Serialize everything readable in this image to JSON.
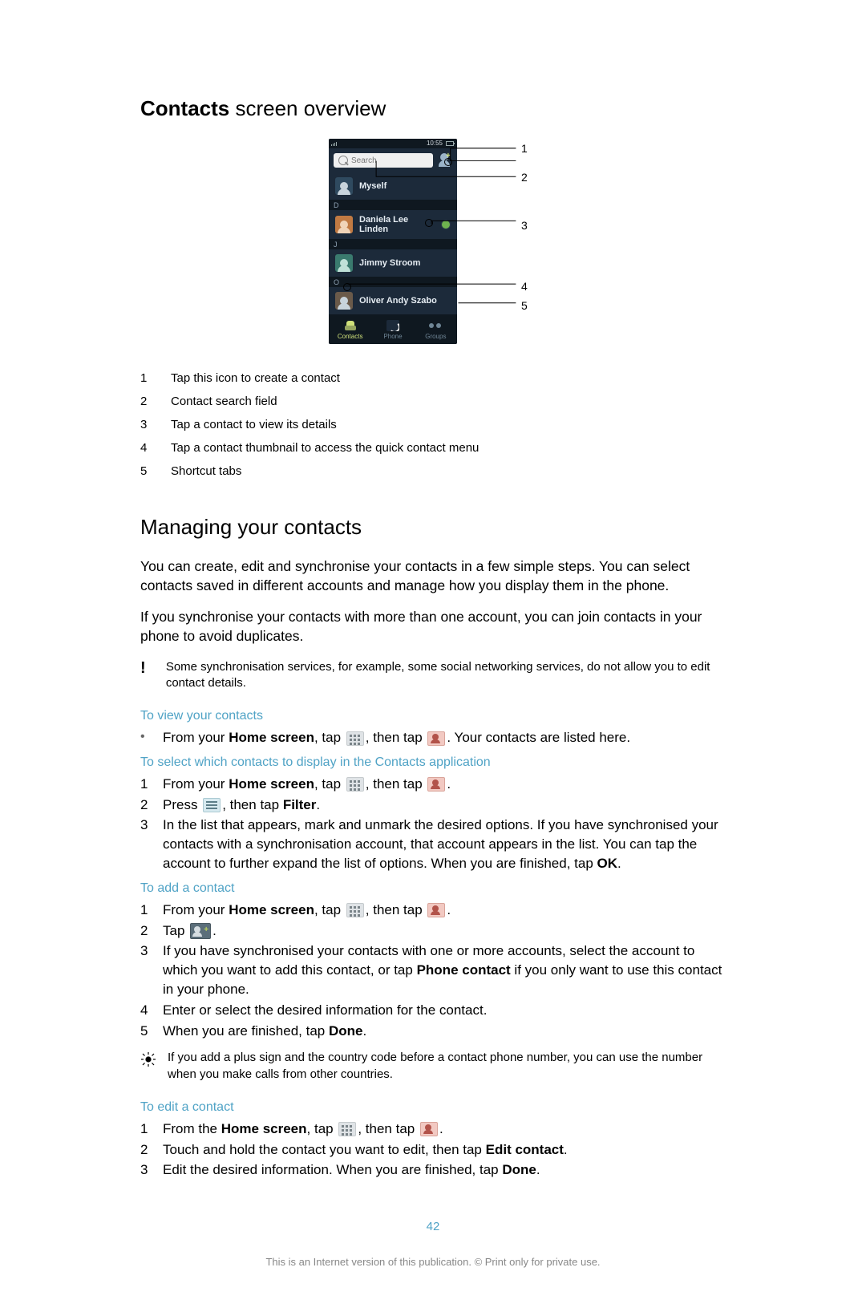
{
  "heading1": {
    "bold": "Contacts",
    "rest": " screen overview"
  },
  "figure": {
    "statusbar_time": "10:55",
    "search_placeholder": "Search",
    "rows": [
      {
        "index_letter": null,
        "name": "Myself",
        "avatar_variant": "blue",
        "status": false,
        "myself": true
      },
      {
        "index_letter": "D",
        "name": "Daniela Lee Linden",
        "avatar_variant": "orange",
        "status": true
      },
      {
        "index_letter": "J",
        "name": "Jimmy Stroom",
        "avatar_variant": "teal",
        "status": false
      },
      {
        "index_letter": "O",
        "name": "Oliver Andy Szabo",
        "avatar_variant": "img",
        "status": false
      }
    ],
    "tabs": [
      {
        "label": "Contacts",
        "active": true,
        "icon": "contacts"
      },
      {
        "label": "Phone",
        "active": false,
        "icon": "phone"
      },
      {
        "label": "Groups",
        "active": false,
        "icon": "groups"
      }
    ],
    "callouts": [
      "1",
      "2",
      "3",
      "4",
      "5"
    ]
  },
  "legend": [
    {
      "n": "1",
      "text": "Tap this icon to create a contact"
    },
    {
      "n": "2",
      "text": "Contact search field"
    },
    {
      "n": "3",
      "text": "Tap a contact to view its details"
    },
    {
      "n": "4",
      "text": "Tap a contact thumbnail to access the quick contact menu"
    },
    {
      "n": "5",
      "text": "Shortcut tabs"
    }
  ],
  "heading2": "Managing your contacts",
  "para1": "You can create, edit and synchronise your contacts in a few simple steps. You can select contacts saved in different accounts and manage how you display them in the phone.",
  "para2": "If you synchronise your contacts with more than one account, you can join contacts in your phone to avoid duplicates.",
  "note_important": "Some synchronisation services, for example, some social networking services, do not allow you to edit contact details.",
  "tasks": {
    "view": {
      "title": "To view your contacts",
      "bullet_prefix": "From your ",
      "bullet_bold": "Home screen",
      "bullet_mid1": ", tap ",
      "bullet_mid2": ", then tap ",
      "bullet_suffix": ". Your contacts are listed here."
    },
    "select": {
      "title": "To select which contacts to display in the Contacts application",
      "step1_prefix": "From your ",
      "step1_bold": "Home screen",
      "step1_mid1": ", tap ",
      "step1_mid2": ", then tap ",
      "step1_suffix": ".",
      "step2_prefix": "Press ",
      "step2_mid": ", then tap ",
      "step2_bold": "Filter",
      "step2_suffix": ".",
      "step3_a": "In the list that appears, mark and unmark the desired options. If you have synchronised your contacts with a synchronisation account, that account appears in the list. You can tap the account to further expand the list of options. When you are finished, tap ",
      "step3_bold": "OK",
      "step3_suffix": "."
    },
    "add": {
      "title": "To add a contact",
      "step1_prefix": "From your ",
      "step1_bold": "Home screen",
      "step1_mid1": ", tap ",
      "step1_mid2": ", then tap ",
      "step1_suffix": ".",
      "step2_prefix": "Tap ",
      "step2_suffix": ".",
      "step3_a": "If you have synchronised your contacts with one or more accounts, select the account to which you want to add this contact, or tap ",
      "step3_bold": "Phone contact",
      "step3_b": " if you only want to use this contact in your phone.",
      "step4": "Enter or select the desired information for the contact.",
      "step5_a": "When you are finished, tap ",
      "step5_bold": "Done",
      "step5_suffix": "."
    },
    "tip": "If you add a plus sign and the country code before a contact phone number, you can use the number when you make calls from other countries.",
    "edit": {
      "title": "To edit a contact",
      "step1_prefix": "From the ",
      "step1_bold": "Home screen",
      "step1_mid1": ", tap ",
      "step1_mid2": ", then tap ",
      "step1_suffix": ".",
      "step2_a": "Touch and hold the contact you want to edit, then tap ",
      "step2_bold": "Edit contact",
      "step2_suffix": ".",
      "step3_a": "Edit the desired information. When you are finished, tap ",
      "step3_bold": "Done",
      "step3_suffix": "."
    }
  },
  "page_number": "42",
  "footer": "This is an Internet version of this publication. © Print only for private use.",
  "colors": {
    "accent": "#50a3c6",
    "phone_bg": "#1c2a3a",
    "phone_dark": "#0f1820"
  }
}
